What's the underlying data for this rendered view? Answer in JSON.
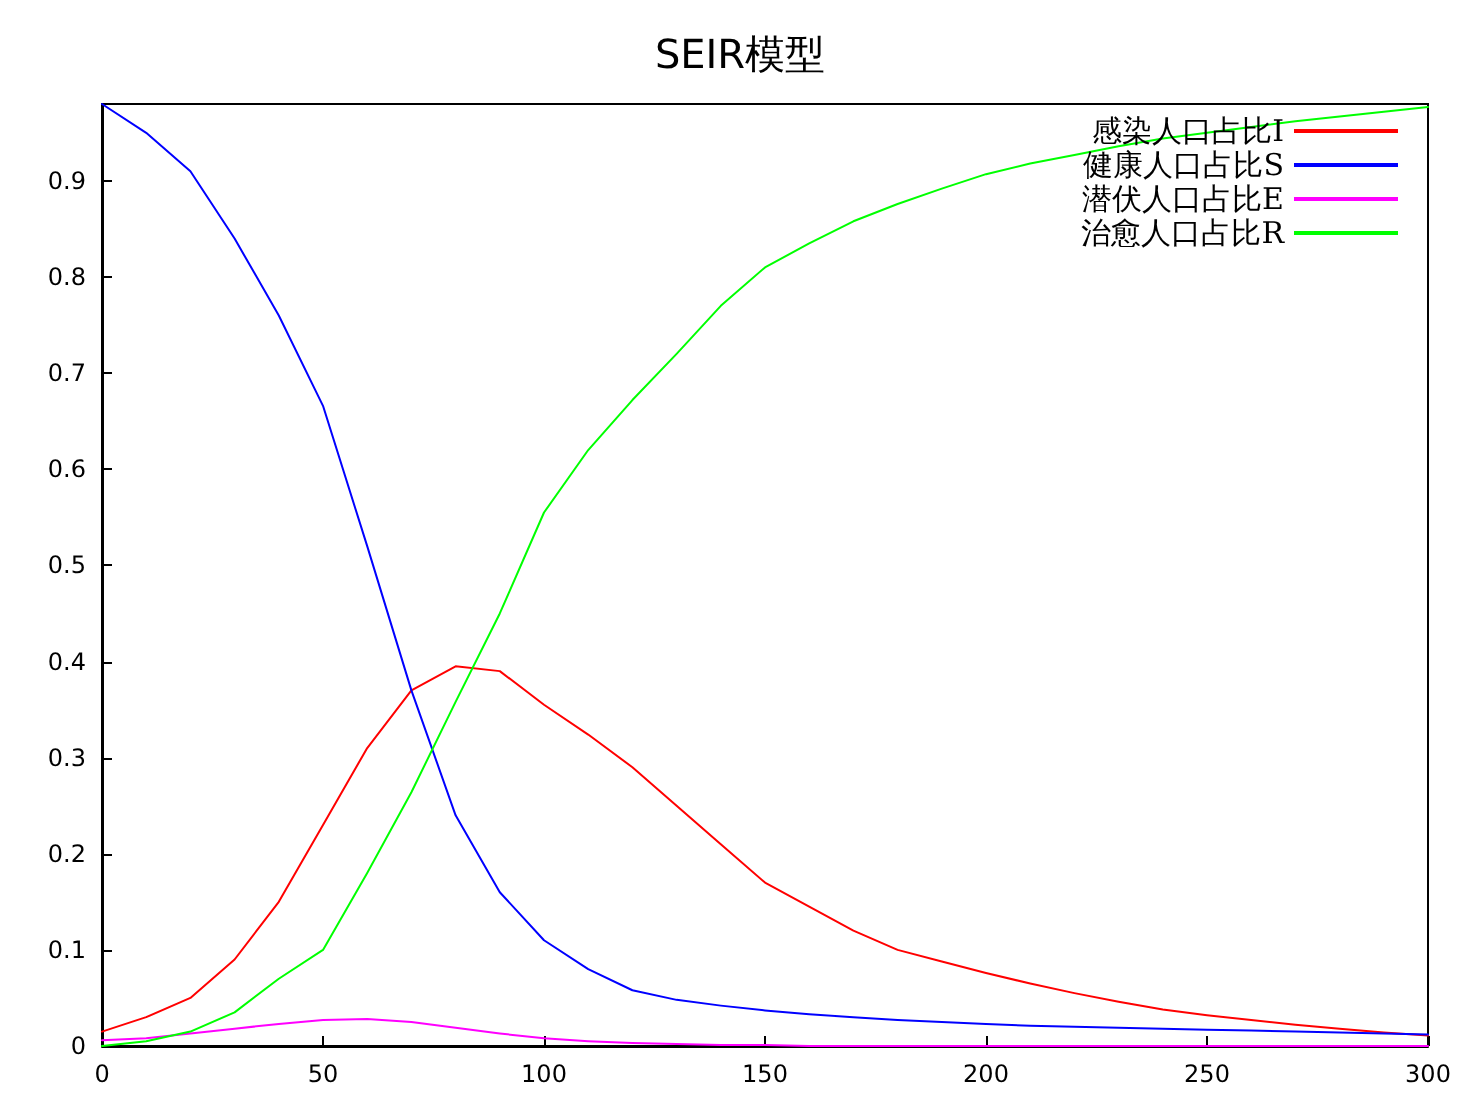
{
  "chart_data": {
    "type": "line",
    "title": "SEIR模型",
    "x": [
      0,
      10,
      20,
      30,
      40,
      50,
      60,
      70,
      80,
      90,
      100,
      110,
      120,
      130,
      140,
      150,
      160,
      170,
      180,
      190,
      200,
      210,
      220,
      230,
      240,
      250,
      260,
      270,
      280,
      290,
      300
    ],
    "series": [
      {
        "name": "感染人口占比I",
        "color": "#ff0000",
        "values": [
          0.015,
          0.03,
          0.05,
          0.09,
          0.15,
          0.23,
          0.31,
          0.37,
          0.395,
          0.39,
          0.355,
          0.324,
          0.29,
          0.25,
          0.21,
          0.17,
          0.145,
          0.12,
          0.1,
          0.088,
          0.076,
          0.065,
          0.055,
          0.046,
          0.038,
          0.032,
          0.027,
          0.022,
          0.018,
          0.014,
          0.011
        ]
      },
      {
        "name": "健康人口占比S",
        "color": "#0000ff",
        "values": [
          0.98,
          0.95,
          0.91,
          0.84,
          0.76,
          0.666,
          0.52,
          0.37,
          0.24,
          0.16,
          0.11,
          0.08,
          0.058,
          0.048,
          0.042,
          0.037,
          0.033,
          0.03,
          0.027,
          0.025,
          0.023,
          0.021,
          0.02,
          0.019,
          0.018,
          0.017,
          0.016,
          0.015,
          0.014,
          0.013,
          0.012
        ]
      },
      {
        "name": "潜伏人口占比E",
        "color": "#ff00ff",
        "values": [
          0.006,
          0.008,
          0.013,
          0.018,
          0.023,
          0.027,
          0.028,
          0.025,
          0.019,
          0.013,
          0.008,
          0.005,
          0.003,
          0.002,
          0.001,
          0.001,
          0,
          0,
          0,
          0,
          0,
          0,
          0,
          0,
          0,
          0,
          0,
          0,
          0,
          0,
          0
        ]
      },
      {
        "name": "治愈人口占比R",
        "color": "#00ff00",
        "values": [
          0,
          0.005,
          0.015,
          0.035,
          0.07,
          0.1,
          0.18,
          0.264,
          0.358,
          0.45,
          0.555,
          0.62,
          0.672,
          0.72,
          0.77,
          0.81,
          0.835,
          0.858,
          0.876,
          0.892,
          0.907,
          0.918,
          0.927,
          0.936,
          0.944,
          0.95,
          0.956,
          0.962,
          0.967,
          0.972,
          0.977
        ]
      }
    ],
    "xlim": [
      0,
      300
    ],
    "xticks": [
      0,
      50,
      100,
      150,
      200,
      250,
      300
    ],
    "ylim": [
      0,
      0.98
    ],
    "yticks": [
      0,
      0.1,
      0.2,
      0.3,
      0.4,
      0.5,
      0.6,
      0.7,
      0.8,
      0.9
    ],
    "grid": false,
    "legend": "top right",
    "marker": "none",
    "line_style": "solid"
  }
}
